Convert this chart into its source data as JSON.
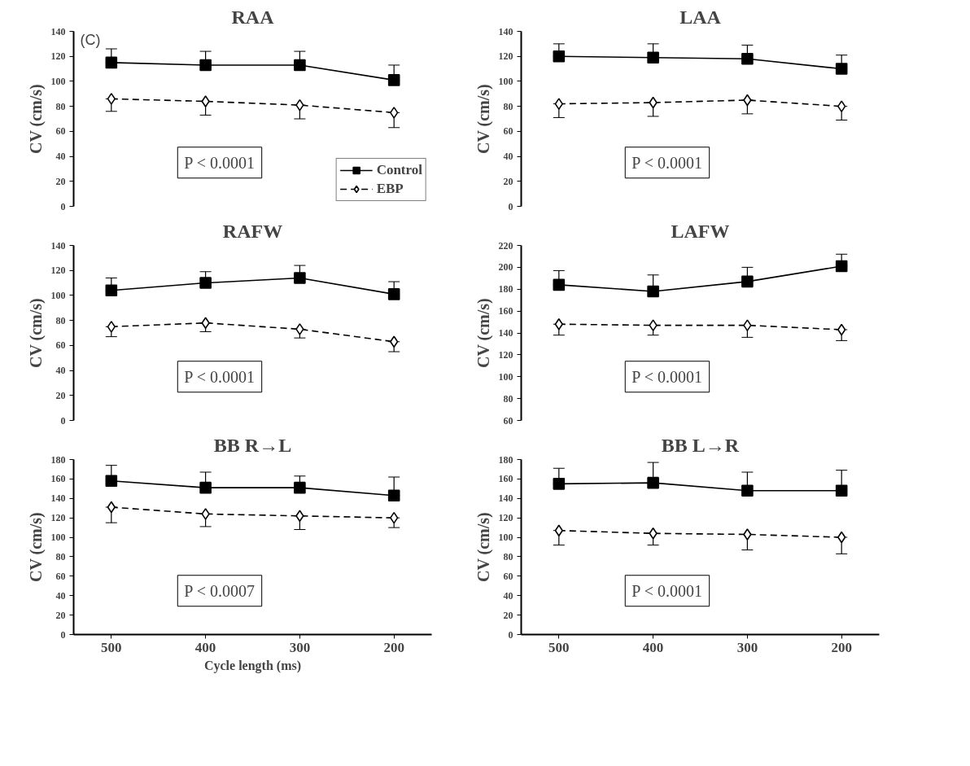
{
  "chart_data": [
    {
      "type": "line",
      "title": "RAA",
      "ylabel": "CV (cm/s)",
      "categories": [
        "500",
        "400",
        "300",
        "200"
      ],
      "ylim": [
        0,
        140
      ],
      "yticks": [
        0,
        20,
        40,
        60,
        80,
        100,
        120,
        140
      ],
      "tick_labels": "y",
      "legend": "bottom right",
      "annotations": [
        "(C)",
        "P < 0.0001"
      ],
      "series": [
        {
          "name": "Control",
          "color": "#000000",
          "marker": "square",
          "line_style": "solid",
          "values": [
            115,
            113,
            113,
            101
          ],
          "errors": [
            [
              115,
              126
            ],
            [
              113,
              124
            ],
            [
              113,
              124
            ],
            [
              101,
              113
            ]
          ]
        },
        {
          "name": "EBP",
          "color": "#000000",
          "marker": "diamond",
          "line_style": "dashed",
          "values": [
            86,
            84,
            81,
            75
          ],
          "errors": [
            [
              76,
              86
            ],
            [
              73,
              84
            ],
            [
              70,
              81
            ],
            [
              63,
              75
            ]
          ]
        }
      ]
    },
    {
      "type": "line",
      "title": "LAA",
      "ylabel": "CV (cm/s)",
      "categories": [
        "500",
        "400",
        "300",
        "200"
      ],
      "ylim": [
        0,
        140
      ],
      "yticks": [
        0,
        20,
        40,
        60,
        80,
        100,
        120,
        140
      ],
      "tick_labels": "y",
      "annotations": [
        "P < 0.0001"
      ],
      "series": [
        {
          "color": "#000000",
          "marker": "square",
          "line_style": "solid",
          "values": [
            120,
            119,
            118,
            110
          ],
          "errors": [
            [
              120,
              130
            ],
            [
              119,
              130
            ],
            [
              118,
              129
            ],
            [
              110,
              121
            ]
          ]
        },
        {
          "color": "#000000",
          "marker": "diamond",
          "line_style": "dashed",
          "values": [
            82,
            83,
            85,
            80
          ],
          "errors": [
            [
              71,
              82
            ],
            [
              72,
              83
            ],
            [
              74,
              85
            ],
            [
              69,
              80
            ]
          ]
        }
      ]
    },
    {
      "type": "line",
      "title": "RAFW",
      "ylabel": "CV (cm/s)",
      "categories": [
        "500",
        "400",
        "300",
        "200"
      ],
      "ylim": [
        0,
        140
      ],
      "yticks": [
        0,
        20,
        40,
        60,
        80,
        100,
        120,
        140
      ],
      "tick_labels": "y",
      "annotations": [
        "P < 0.0001"
      ],
      "series": [
        {
          "color": "#000000",
          "marker": "square",
          "line_style": "solid",
          "values": [
            104,
            110,
            114,
            101
          ],
          "errors": [
            [
              104,
              114
            ],
            [
              110,
              119
            ],
            [
              114,
              124
            ],
            [
              101,
              111
            ]
          ]
        },
        {
          "color": "#000000",
          "marker": "diamond",
          "line_style": "dashed",
          "values": [
            75,
            78,
            73,
            63
          ],
          "errors": [
            [
              67,
              75
            ],
            [
              71,
              78
            ],
            [
              66,
              73
            ],
            [
              55,
              63
            ]
          ]
        }
      ]
    },
    {
      "type": "line",
      "title": "LAFW",
      "ylabel": "CV (cm/s)",
      "categories": [
        "500",
        "400",
        "300",
        "200"
      ],
      "ylim": [
        60,
        220
      ],
      "yticks": [
        60,
        80,
        100,
        120,
        140,
        160,
        180,
        200,
        220
      ],
      "tick_labels": "y",
      "annotations": [
        "P < 0.0001"
      ],
      "series": [
        {
          "color": "#000000",
          "marker": "square",
          "line_style": "solid",
          "values": [
            184,
            178,
            187,
            201
          ],
          "errors": [
            [
              184,
              197
            ],
            [
              178,
              193
            ],
            [
              187,
              200
            ],
            [
              201,
              212
            ]
          ]
        },
        {
          "color": "#000000",
          "marker": "diamond",
          "line_style": "dashed",
          "values": [
            148,
            147,
            147,
            143
          ],
          "errors": [
            [
              138,
              148
            ],
            [
              138,
              147
            ],
            [
              136,
              147
            ],
            [
              133,
              143
            ]
          ]
        }
      ]
    },
    {
      "type": "line",
      "title": "BB R→L",
      "ylabel": "CV (cm/s)",
      "xlabel": "Cycle length (ms)",
      "categories": [
        "500",
        "400",
        "300",
        "200"
      ],
      "ylim": [
        0,
        180
      ],
      "yticks": [
        0,
        20,
        40,
        60,
        80,
        100,
        120,
        140,
        160,
        180
      ],
      "annotations": [
        "P < 0.0007"
      ],
      "series": [
        {
          "color": "#000000",
          "marker": "square",
          "line_style": "solid",
          "values": [
            158,
            151,
            151,
            143
          ],
          "errors": [
            [
              158,
              174
            ],
            [
              151,
              167
            ],
            [
              151,
              163
            ],
            [
              143,
              162
            ]
          ]
        },
        {
          "color": "#000000",
          "marker": "diamond",
          "line_style": "dashed",
          "values": [
            131,
            124,
            122,
            120
          ],
          "errors": [
            [
              115,
              131
            ],
            [
              111,
              124
            ],
            [
              108,
              122
            ],
            [
              110,
              120
            ]
          ]
        }
      ]
    },
    {
      "type": "line",
      "title": "BB L→R",
      "ylabel": "CV (cm/s)",
      "categories": [
        "500",
        "400",
        "300",
        "200"
      ],
      "ylim": [
        0,
        180
      ],
      "yticks": [
        0,
        20,
        40,
        60,
        80,
        100,
        120,
        140,
        160,
        180
      ],
      "annotations": [
        "P < 0.0001"
      ],
      "series": [
        {
          "color": "#000000",
          "marker": "square",
          "line_style": "solid",
          "values": [
            155,
            156,
            148,
            148
          ],
          "errors": [
            [
              155,
              171
            ],
            [
              156,
              177
            ],
            [
              148,
              167
            ],
            [
              148,
              169
            ]
          ]
        },
        {
          "color": "#000000",
          "marker": "diamond",
          "line_style": "dashed",
          "values": [
            107,
            104,
            103,
            100
          ],
          "errors": [
            [
              92,
              107
            ],
            [
              92,
              104
            ],
            [
              87,
              103
            ],
            [
              83,
              100
            ]
          ]
        }
      ]
    }
  ]
}
